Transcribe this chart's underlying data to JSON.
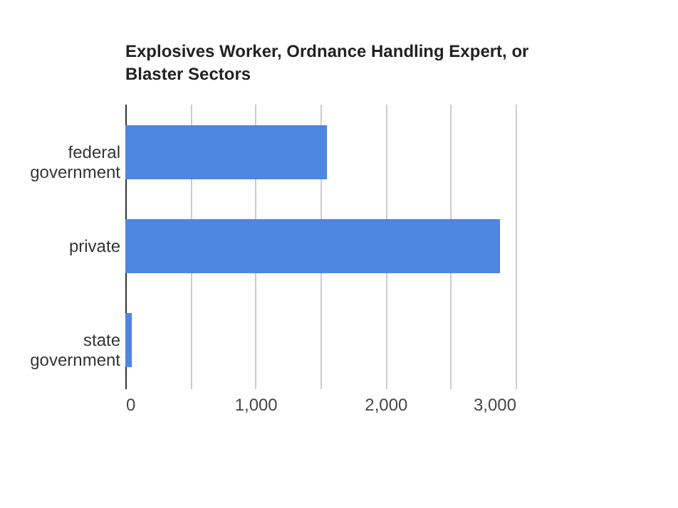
{
  "chart_data": {
    "type": "bar",
    "orientation": "horizontal",
    "title": "Explosives Worker, Ordnance Handling Expert, or Blaster Sectors",
    "categories": [
      "federal government",
      "private",
      "state government"
    ],
    "values": [
      1550,
      2880,
      50
    ],
    "color": "#4f85e3",
    "xlim": [
      0,
      3000
    ],
    "xticks": [
      0,
      {
        "value": 500,
        "label": null
      },
      {
        "value": 1000,
        "label": "1,000"
      },
      {
        "value": 1500,
        "label": null
      },
      {
        "value": 2000,
        "label": "2,000"
      },
      {
        "value": 2500,
        "label": null
      },
      {
        "value": 3000,
        "label": "3,000"
      }
    ],
    "grid": "x"
  }
}
